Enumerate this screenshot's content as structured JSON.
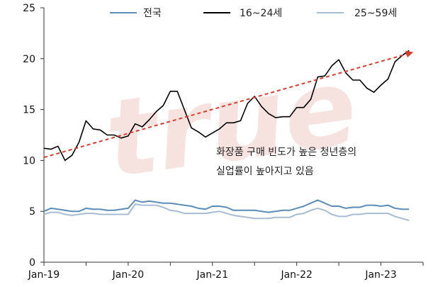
{
  "chart_data": {
    "type": "line",
    "watermark": "true",
    "ylim": [
      0,
      25
    ],
    "yticks": [
      0,
      5,
      10,
      15,
      20,
      25
    ],
    "xlim": [
      "2019-01",
      "2023-07"
    ],
    "xticks": [
      {
        "date": "2019-01",
        "label": "Jan-19"
      },
      {
        "date": "2020-01",
        "label": "Jan-20"
      },
      {
        "date": "2021-01",
        "label": "Jan-21"
      },
      {
        "date": "2022-01",
        "label": "Jan-22"
      },
      {
        "date": "2023-01",
        "label": "Jan-23"
      }
    ],
    "legend_position": "top",
    "series": [
      {
        "name": "전국",
        "color": "#5b8db8",
        "x": [
          "2019-01",
          "2019-02",
          "2019-03",
          "2019-04",
          "2019-05",
          "2019-06",
          "2019-07",
          "2019-08",
          "2019-09",
          "2019-10",
          "2019-11",
          "2019-12",
          "2020-01",
          "2020-02",
          "2020-03",
          "2020-04",
          "2020-05",
          "2020-06",
          "2020-07",
          "2020-08",
          "2020-09",
          "2020-10",
          "2020-11",
          "2020-12",
          "2021-01",
          "2021-02",
          "2021-03",
          "2021-04",
          "2021-05",
          "2021-06",
          "2021-07",
          "2021-08",
          "2021-09",
          "2021-10",
          "2021-11",
          "2021-12",
          "2022-01",
          "2022-02",
          "2022-03",
          "2022-04",
          "2022-05",
          "2022-06",
          "2022-07",
          "2022-08",
          "2022-09",
          "2022-10",
          "2022-11",
          "2022-12",
          "2023-01",
          "2023-02",
          "2023-03",
          "2023-04",
          "2023-05"
        ],
        "y": [
          5.0,
          5.3,
          5.2,
          5.1,
          5.0,
          5.0,
          5.3,
          5.2,
          5.2,
          5.1,
          5.1,
          5.2,
          5.3,
          6.1,
          5.9,
          6.0,
          5.9,
          5.8,
          5.8,
          5.7,
          5.6,
          5.5,
          5.3,
          5.2,
          5.5,
          5.5,
          5.4,
          5.1,
          5.1,
          5.1,
          5.1,
          5.0,
          4.9,
          5.0,
          5.1,
          5.1,
          5.3,
          5.5,
          5.8,
          6.1,
          5.8,
          5.5,
          5.5,
          5.3,
          5.4,
          5.4,
          5.6,
          5.6,
          5.5,
          5.6,
          5.3,
          5.2,
          5.2
        ]
      },
      {
        "name": "16~24세",
        "color": "#000000",
        "x": [
          "2019-01",
          "2019-02",
          "2019-03",
          "2019-04",
          "2019-05",
          "2019-06",
          "2019-07",
          "2019-08",
          "2019-09",
          "2019-10",
          "2019-11",
          "2019-12",
          "2020-01",
          "2020-02",
          "2020-03",
          "2020-04",
          "2020-05",
          "2020-06",
          "2020-07",
          "2020-08",
          "2020-09",
          "2020-10",
          "2020-11",
          "2020-12",
          "2021-01",
          "2021-02",
          "2021-03",
          "2021-04",
          "2021-05",
          "2021-06",
          "2021-07",
          "2021-08",
          "2021-09",
          "2021-10",
          "2021-11",
          "2021-12",
          "2022-01",
          "2022-02",
          "2022-03",
          "2022-04",
          "2022-05",
          "2022-06",
          "2022-07",
          "2022-08",
          "2022-09",
          "2022-10",
          "2022-11",
          "2022-12",
          "2023-01",
          "2023-02",
          "2023-03",
          "2023-04",
          "2023-05"
        ],
        "y": [
          11.2,
          11.1,
          11.4,
          10.0,
          10.5,
          11.8,
          13.9,
          13.1,
          13.0,
          12.5,
          12.5,
          12.2,
          12.4,
          13.6,
          13.3,
          14.0,
          14.8,
          15.4,
          16.8,
          16.8,
          15.0,
          13.2,
          12.8,
          12.3,
          12.7,
          13.1,
          13.7,
          13.7,
          13.9,
          15.6,
          16.3,
          15.3,
          14.6,
          14.2,
          14.3,
          14.3,
          15.2,
          15.2,
          16.0,
          18.2,
          18.3,
          19.3,
          19.9,
          18.6,
          17.9,
          17.9,
          17.1,
          16.7,
          17.4,
          18.0,
          19.7,
          20.3,
          20.8
        ]
      },
      {
        "name": "25~59세",
        "color": "#a7bcd3",
        "x": [
          "2019-01",
          "2019-02",
          "2019-03",
          "2019-04",
          "2019-05",
          "2019-06",
          "2019-07",
          "2019-08",
          "2019-09",
          "2019-10",
          "2019-11",
          "2019-12",
          "2020-01",
          "2020-02",
          "2020-03",
          "2020-04",
          "2020-05",
          "2020-06",
          "2020-07",
          "2020-08",
          "2020-09",
          "2020-10",
          "2020-11",
          "2020-12",
          "2021-01",
          "2021-02",
          "2021-03",
          "2021-04",
          "2021-05",
          "2021-06",
          "2021-07",
          "2021-08",
          "2021-09",
          "2021-10",
          "2021-11",
          "2021-12",
          "2022-01",
          "2022-02",
          "2022-03",
          "2022-04",
          "2022-05",
          "2022-06",
          "2022-07",
          "2022-08",
          "2022-09",
          "2022-10",
          "2022-11",
          "2022-12",
          "2023-01",
          "2023-02",
          "2023-03",
          "2023-04",
          "2023-05"
        ],
        "y": [
          4.7,
          4.9,
          4.9,
          4.7,
          4.6,
          4.7,
          4.8,
          4.8,
          4.7,
          4.7,
          4.7,
          4.7,
          4.7,
          5.7,
          5.6,
          5.6,
          5.6,
          5.4,
          5.1,
          5.0,
          4.8,
          4.8,
          4.8,
          4.8,
          4.9,
          5.0,
          4.8,
          4.6,
          4.5,
          4.4,
          4.3,
          4.3,
          4.3,
          4.4,
          4.4,
          4.4,
          4.7,
          4.8,
          5.1,
          5.3,
          5.1,
          4.7,
          4.5,
          4.5,
          4.7,
          4.7,
          4.8,
          4.8,
          4.8,
          4.8,
          4.5,
          4.3,
          4.1
        ]
      }
    ],
    "trendline": {
      "color": "#e03a2f",
      "x": [
        "2019-01",
        "2023-05"
      ],
      "y": [
        10.3,
        20.6
      ]
    },
    "annotation": [
      "화장품 구매 빈도가 높은 청년층의",
      "실업률이 높아지고 있음"
    ]
  }
}
